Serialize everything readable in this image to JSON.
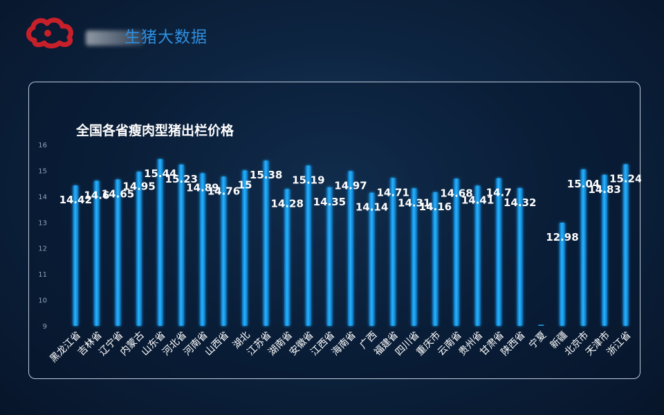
{
  "header": {
    "title": "生猪大数据",
    "logo_icon": "red-cloud-logo-icon",
    "accent_color": "#2f8fe0"
  },
  "chart_data": {
    "type": "bar",
    "title": "全国各省瘦肉型猪出栏价格",
    "xlabel": "",
    "ylabel": "",
    "ylim": [
      9,
      16
    ],
    "yticks": [
      9,
      10,
      11,
      12,
      13,
      14,
      15,
      16
    ],
    "grid": false,
    "bar_color": "#1ea7f2",
    "categories": [
      "黑龙江省",
      "吉林省",
      "辽宁省",
      "内蒙古",
      "山东省",
      "河北省",
      "河南省",
      "山西省",
      "湖北",
      "江苏省",
      "湖南省",
      "安徽省",
      "江西省",
      "海南省",
      "广西",
      "福建省",
      "四川省",
      "重庆市",
      "云南省",
      "贵州省",
      "甘肃省",
      "陕西省",
      "宁夏",
      "新疆",
      "北京市",
      "天津市",
      "浙江省"
    ],
    "values": [
      14.42,
      14.6,
      14.65,
      14.95,
      15.44,
      15.23,
      14.89,
      14.76,
      15,
      15.38,
      14.28,
      15.19,
      14.35,
      14.97,
      14.14,
      14.71,
      14.31,
      14.16,
      14.68,
      14.41,
      14.7,
      14.32,
      null,
      12.98,
      15.04,
      14.83,
      15.24
    ],
    "data_labels": [
      "14.42",
      "14.6",
      "14.65",
      "14.95",
      "15.44",
      "15.23",
      "14.89",
      "14.76",
      "15",
      "15.38",
      "14.28",
      "15.19",
      "14.35",
      "14.97",
      "14.14",
      "14.71",
      "14.31",
      "14.16",
      "14.68",
      "14.41",
      "14.7",
      "14.32",
      "",
      "12.98",
      "15.04",
      "14.83",
      "15.24"
    ]
  }
}
